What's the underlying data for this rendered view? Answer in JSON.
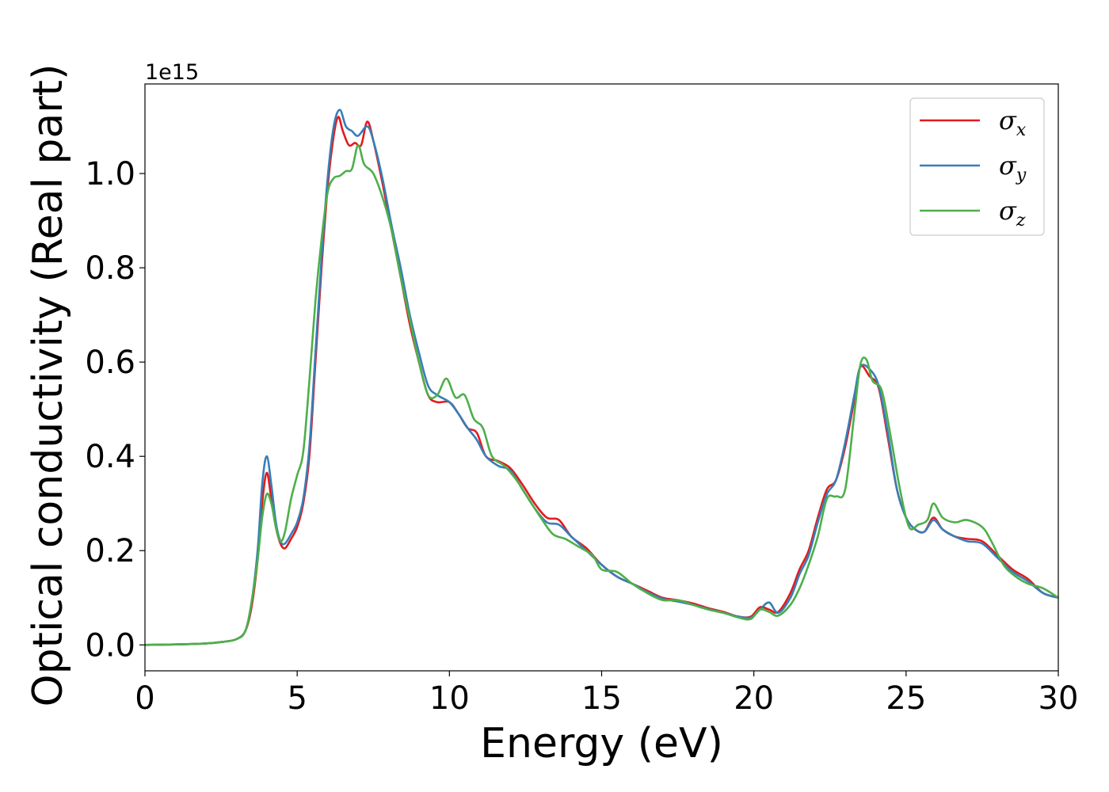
{
  "chart_data": {
    "type": "line",
    "title": "",
    "xlabel": "Energy (eV)",
    "ylabel": "Optical conductivity (Real part)",
    "y_offset_label": "1e15",
    "y_scale_factor": 1000000000000000.0,
    "xlim": [
      0,
      30
    ],
    "ylim": [
      -0.055,
      1.19
    ],
    "x_ticks": [
      0,
      5,
      10,
      15,
      20,
      25,
      30
    ],
    "x_tick_labels": [
      "0",
      "5",
      "10",
      "15",
      "20",
      "25",
      "30"
    ],
    "y_ticks": [
      0.0,
      0.2,
      0.4,
      0.6,
      0.8,
      1.0
    ],
    "y_tick_labels": [
      "0.0",
      "0.2",
      "0.4",
      "0.6",
      "0.8",
      "1.0"
    ],
    "grid": false,
    "legend": "top-right",
    "series": [
      {
        "name": "σx",
        "symbol": "σ",
        "subscript": "x",
        "color": "#e41a1c",
        "points": [
          [
            0,
            0
          ],
          [
            1,
            0.001
          ],
          [
            2,
            0.003
          ],
          [
            2.5,
            0.006
          ],
          [
            3,
            0.012
          ],
          [
            3.3,
            0.03
          ],
          [
            3.5,
            0.08
          ],
          [
            3.7,
            0.18
          ],
          [
            3.85,
            0.3
          ],
          [
            4.0,
            0.365
          ],
          [
            4.15,
            0.31
          ],
          [
            4.3,
            0.25
          ],
          [
            4.45,
            0.215
          ],
          [
            4.6,
            0.205
          ],
          [
            4.8,
            0.225
          ],
          [
            5.0,
            0.25
          ],
          [
            5.2,
            0.3
          ],
          [
            5.4,
            0.4
          ],
          [
            5.6,
            0.6
          ],
          [
            5.8,
            0.8
          ],
          [
            6.0,
            0.97
          ],
          [
            6.2,
            1.08
          ],
          [
            6.35,
            1.12
          ],
          [
            6.5,
            1.09
          ],
          [
            6.7,
            1.06
          ],
          [
            6.9,
            1.065
          ],
          [
            7.1,
            1.06
          ],
          [
            7.3,
            1.11
          ],
          [
            7.5,
            1.07
          ],
          [
            7.8,
            0.98
          ],
          [
            8.1,
            0.88
          ],
          [
            8.4,
            0.78
          ],
          [
            8.7,
            0.68
          ],
          [
            9.0,
            0.6
          ],
          [
            9.3,
            0.53
          ],
          [
            9.6,
            0.515
          ],
          [
            10.0,
            0.515
          ],
          [
            10.3,
            0.49
          ],
          [
            10.6,
            0.46
          ],
          [
            10.9,
            0.45
          ],
          [
            11.2,
            0.4
          ],
          [
            11.6,
            0.39
          ],
          [
            12.0,
            0.375
          ],
          [
            12.4,
            0.34
          ],
          [
            12.8,
            0.3
          ],
          [
            13.2,
            0.27
          ],
          [
            13.6,
            0.265
          ],
          [
            14.0,
            0.23
          ],
          [
            14.5,
            0.205
          ],
          [
            15.0,
            0.17
          ],
          [
            15.5,
            0.145
          ],
          [
            16.0,
            0.13
          ],
          [
            16.5,
            0.115
          ],
          [
            17.0,
            0.1
          ],
          [
            17.5,
            0.095
          ],
          [
            18.0,
            0.088
          ],
          [
            18.5,
            0.078
          ],
          [
            19.0,
            0.07
          ],
          [
            19.5,
            0.06
          ],
          [
            19.9,
            0.06
          ],
          [
            20.2,
            0.08
          ],
          [
            20.5,
            0.075
          ],
          [
            20.8,
            0.07
          ],
          [
            21.2,
            0.11
          ],
          [
            21.5,
            0.16
          ],
          [
            21.8,
            0.2
          ],
          [
            22.1,
            0.27
          ],
          [
            22.4,
            0.33
          ],
          [
            22.7,
            0.35
          ],
          [
            23.0,
            0.42
          ],
          [
            23.3,
            0.52
          ],
          [
            23.5,
            0.59
          ],
          [
            23.8,
            0.57
          ],
          [
            24.1,
            0.545
          ],
          [
            24.4,
            0.44
          ],
          [
            24.7,
            0.33
          ],
          [
            25.0,
            0.27
          ],
          [
            25.3,
            0.245
          ],
          [
            25.6,
            0.24
          ],
          [
            25.9,
            0.27
          ],
          [
            26.2,
            0.245
          ],
          [
            26.6,
            0.23
          ],
          [
            27.0,
            0.225
          ],
          [
            27.5,
            0.22
          ],
          [
            28.0,
            0.19
          ],
          [
            28.5,
            0.16
          ],
          [
            29.0,
            0.14
          ],
          [
            29.5,
            0.11
          ],
          [
            30.0,
            0.1
          ]
        ]
      },
      {
        "name": "σy",
        "symbol": "σ",
        "subscript": "y",
        "color": "#377eb8",
        "points": [
          [
            0,
            0
          ],
          [
            1,
            0.001
          ],
          [
            2,
            0.003
          ],
          [
            2.5,
            0.006
          ],
          [
            3,
            0.012
          ],
          [
            3.3,
            0.03
          ],
          [
            3.5,
            0.09
          ],
          [
            3.7,
            0.2
          ],
          [
            3.85,
            0.34
          ],
          [
            4.0,
            0.4
          ],
          [
            4.15,
            0.34
          ],
          [
            4.3,
            0.26
          ],
          [
            4.45,
            0.22
          ],
          [
            4.6,
            0.215
          ],
          [
            4.8,
            0.235
          ],
          [
            5.0,
            0.26
          ],
          [
            5.2,
            0.31
          ],
          [
            5.4,
            0.42
          ],
          [
            5.6,
            0.62
          ],
          [
            5.8,
            0.82
          ],
          [
            6.0,
            0.99
          ],
          [
            6.2,
            1.1
          ],
          [
            6.4,
            1.135
          ],
          [
            6.6,
            1.1
          ],
          [
            6.8,
            1.09
          ],
          [
            7.0,
            1.08
          ],
          [
            7.3,
            1.1
          ],
          [
            7.5,
            1.07
          ],
          [
            7.8,
            0.99
          ],
          [
            8.1,
            0.89
          ],
          [
            8.4,
            0.8
          ],
          [
            8.7,
            0.7
          ],
          [
            9.0,
            0.62
          ],
          [
            9.3,
            0.55
          ],
          [
            9.6,
            0.53
          ],
          [
            10.0,
            0.515
          ],
          [
            10.3,
            0.49
          ],
          [
            10.6,
            0.46
          ],
          [
            10.9,
            0.435
          ],
          [
            11.2,
            0.4
          ],
          [
            11.6,
            0.38
          ],
          [
            12.0,
            0.37
          ],
          [
            12.4,
            0.33
          ],
          [
            12.8,
            0.29
          ],
          [
            13.2,
            0.26
          ],
          [
            13.6,
            0.255
          ],
          [
            14.0,
            0.23
          ],
          [
            14.5,
            0.2
          ],
          [
            15.0,
            0.17
          ],
          [
            15.5,
            0.145
          ],
          [
            16.0,
            0.13
          ],
          [
            16.5,
            0.112
          ],
          [
            17.0,
            0.098
          ],
          [
            17.5,
            0.092
          ],
          [
            18.0,
            0.085
          ],
          [
            18.5,
            0.076
          ],
          [
            19.0,
            0.068
          ],
          [
            19.5,
            0.06
          ],
          [
            19.9,
            0.058
          ],
          [
            20.2,
            0.075
          ],
          [
            20.5,
            0.09
          ],
          [
            20.8,
            0.068
          ],
          [
            21.2,
            0.1
          ],
          [
            21.5,
            0.15
          ],
          [
            21.8,
            0.19
          ],
          [
            22.1,
            0.26
          ],
          [
            22.4,
            0.32
          ],
          [
            22.7,
            0.35
          ],
          [
            23.0,
            0.43
          ],
          [
            23.3,
            0.53
          ],
          [
            23.5,
            0.59
          ],
          [
            23.8,
            0.585
          ],
          [
            24.1,
            0.55
          ],
          [
            24.4,
            0.45
          ],
          [
            24.7,
            0.33
          ],
          [
            25.0,
            0.27
          ],
          [
            25.3,
            0.245
          ],
          [
            25.6,
            0.24
          ],
          [
            25.9,
            0.265
          ],
          [
            26.2,
            0.245
          ],
          [
            26.6,
            0.23
          ],
          [
            27.0,
            0.22
          ],
          [
            27.5,
            0.215
          ],
          [
            28.0,
            0.185
          ],
          [
            28.5,
            0.155
          ],
          [
            29.0,
            0.135
          ],
          [
            29.5,
            0.11
          ],
          [
            30.0,
            0.1
          ]
        ]
      },
      {
        "name": "σz",
        "symbol": "σ",
        "subscript": "z",
        "color": "#4daf4a",
        "points": [
          [
            0,
            0
          ],
          [
            1,
            0.001
          ],
          [
            2,
            0.003
          ],
          [
            2.5,
            0.006
          ],
          [
            3,
            0.012
          ],
          [
            3.3,
            0.03
          ],
          [
            3.5,
            0.09
          ],
          [
            3.7,
            0.18
          ],
          [
            3.85,
            0.27
          ],
          [
            4.0,
            0.32
          ],
          [
            4.15,
            0.3
          ],
          [
            4.3,
            0.25
          ],
          [
            4.45,
            0.22
          ],
          [
            4.6,
            0.24
          ],
          [
            4.8,
            0.31
          ],
          [
            5.0,
            0.36
          ],
          [
            5.2,
            0.41
          ],
          [
            5.4,
            0.56
          ],
          [
            5.6,
            0.73
          ],
          [
            5.8,
            0.86
          ],
          [
            6.0,
            0.96
          ],
          [
            6.2,
            0.99
          ],
          [
            6.4,
            0.995
          ],
          [
            6.6,
            1.005
          ],
          [
            6.8,
            1.01
          ],
          [
            7.0,
            1.06
          ],
          [
            7.2,
            1.02
          ],
          [
            7.5,
            1.0
          ],
          [
            7.8,
            0.95
          ],
          [
            8.1,
            0.88
          ],
          [
            8.4,
            0.78
          ],
          [
            8.7,
            0.69
          ],
          [
            9.0,
            0.6
          ],
          [
            9.3,
            0.53
          ],
          [
            9.6,
            0.53
          ],
          [
            9.9,
            0.565
          ],
          [
            10.2,
            0.525
          ],
          [
            10.5,
            0.53
          ],
          [
            10.8,
            0.48
          ],
          [
            11.1,
            0.46
          ],
          [
            11.4,
            0.4
          ],
          [
            11.8,
            0.38
          ],
          [
            12.2,
            0.35
          ],
          [
            12.6,
            0.31
          ],
          [
            13.0,
            0.27
          ],
          [
            13.4,
            0.235
          ],
          [
            13.8,
            0.225
          ],
          [
            14.2,
            0.21
          ],
          [
            14.7,
            0.19
          ],
          [
            15.0,
            0.16
          ],
          [
            15.5,
            0.155
          ],
          [
            16.0,
            0.13
          ],
          [
            16.5,
            0.11
          ],
          [
            17.0,
            0.095
          ],
          [
            17.5,
            0.095
          ],
          [
            18.0,
            0.085
          ],
          [
            18.5,
            0.075
          ],
          [
            19.0,
            0.068
          ],
          [
            19.5,
            0.058
          ],
          [
            19.9,
            0.055
          ],
          [
            20.2,
            0.075
          ],
          [
            20.5,
            0.07
          ],
          [
            20.8,
            0.062
          ],
          [
            21.2,
            0.085
          ],
          [
            21.5,
            0.12
          ],
          [
            21.8,
            0.17
          ],
          [
            22.1,
            0.23
          ],
          [
            22.4,
            0.31
          ],
          [
            22.7,
            0.315
          ],
          [
            23.0,
            0.33
          ],
          [
            23.3,
            0.49
          ],
          [
            23.5,
            0.595
          ],
          [
            23.7,
            0.605
          ],
          [
            23.9,
            0.56
          ],
          [
            24.2,
            0.54
          ],
          [
            24.5,
            0.44
          ],
          [
            24.8,
            0.33
          ],
          [
            25.1,
            0.25
          ],
          [
            25.4,
            0.255
          ],
          [
            25.7,
            0.265
          ],
          [
            25.9,
            0.3
          ],
          [
            26.2,
            0.27
          ],
          [
            26.6,
            0.26
          ],
          [
            27.0,
            0.265
          ],
          [
            27.5,
            0.25
          ],
          [
            27.8,
            0.22
          ],
          [
            28.2,
            0.17
          ],
          [
            28.6,
            0.145
          ],
          [
            29.0,
            0.13
          ],
          [
            29.5,
            0.12
          ],
          [
            30.0,
            0.1
          ]
        ]
      }
    ]
  }
}
